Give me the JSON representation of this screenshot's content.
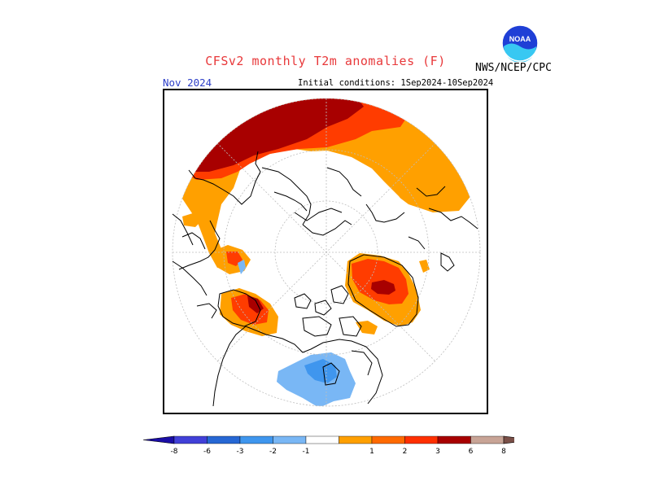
{
  "header": {
    "title": "CFSv2 monthly T2m anomalies (F)",
    "agency": "NWS/NCEP/CPC",
    "logo_text": "NOAA",
    "month": "Nov 2024",
    "initial_conditions": "Initial conditions: 1Sep2024-10Sep2024"
  },
  "colorbar": {
    "labels": [
      "-8",
      "-6",
      "-3",
      "-2",
      "-1",
      "1",
      "2",
      "3",
      "6",
      "8"
    ],
    "colors": [
      "#1a0da6",
      "#4140d8",
      "#2667d4",
      "#3f96ee",
      "#79b7f5",
      "#ffffff",
      "#ffa000",
      "#ff6a00",
      "#ff3000",
      "#a80000",
      "#c8a496",
      "#7a5048"
    ]
  },
  "map": {
    "projection": "polar stereographic, north pole",
    "colors": {
      "land_outline": "#000000",
      "grid": "#bdbdbd",
      "anom_1_2": "#ffa000",
      "anom_2_3": "#ff3c00",
      "anom_3_6": "#a80000",
      "anom_neg_1_2": "#79b7f5",
      "anom_neg_2_3": "#3f96ee"
    }
  }
}
